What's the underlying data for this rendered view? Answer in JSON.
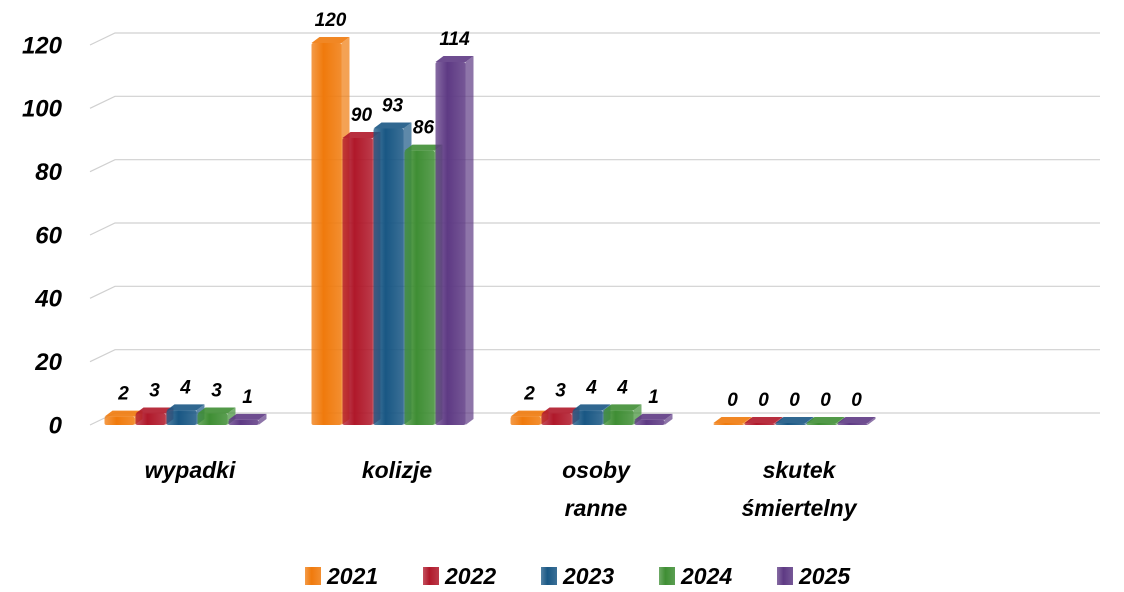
{
  "chart_data": {
    "type": "bar",
    "categories": [
      "wypadki",
      "kolizje",
      "osoby ranne",
      "skutek śmiertelny"
    ],
    "series": [
      {
        "name": "2021",
        "color": "#f07a0c",
        "values": [
          2,
          120,
          2,
          0
        ]
      },
      {
        "name": "2022",
        "color": "#b0182a",
        "values": [
          3,
          90,
          3,
          0
        ]
      },
      {
        "name": "2023",
        "color": "#195784",
        "values": [
          4,
          93,
          4,
          0
        ]
      },
      {
        "name": "2024",
        "color": "#3f8e34",
        "values": [
          3,
          86,
          4,
          0
        ]
      },
      {
        "name": "2025",
        "color": "#5e3a84",
        "values": [
          1,
          114,
          1,
          0
        ]
      }
    ],
    "ylim": [
      0,
      120
    ],
    "yticks": [
      0,
      20,
      40,
      60,
      80,
      100,
      120
    ],
    "grid": true,
    "legend": "bottom"
  }
}
